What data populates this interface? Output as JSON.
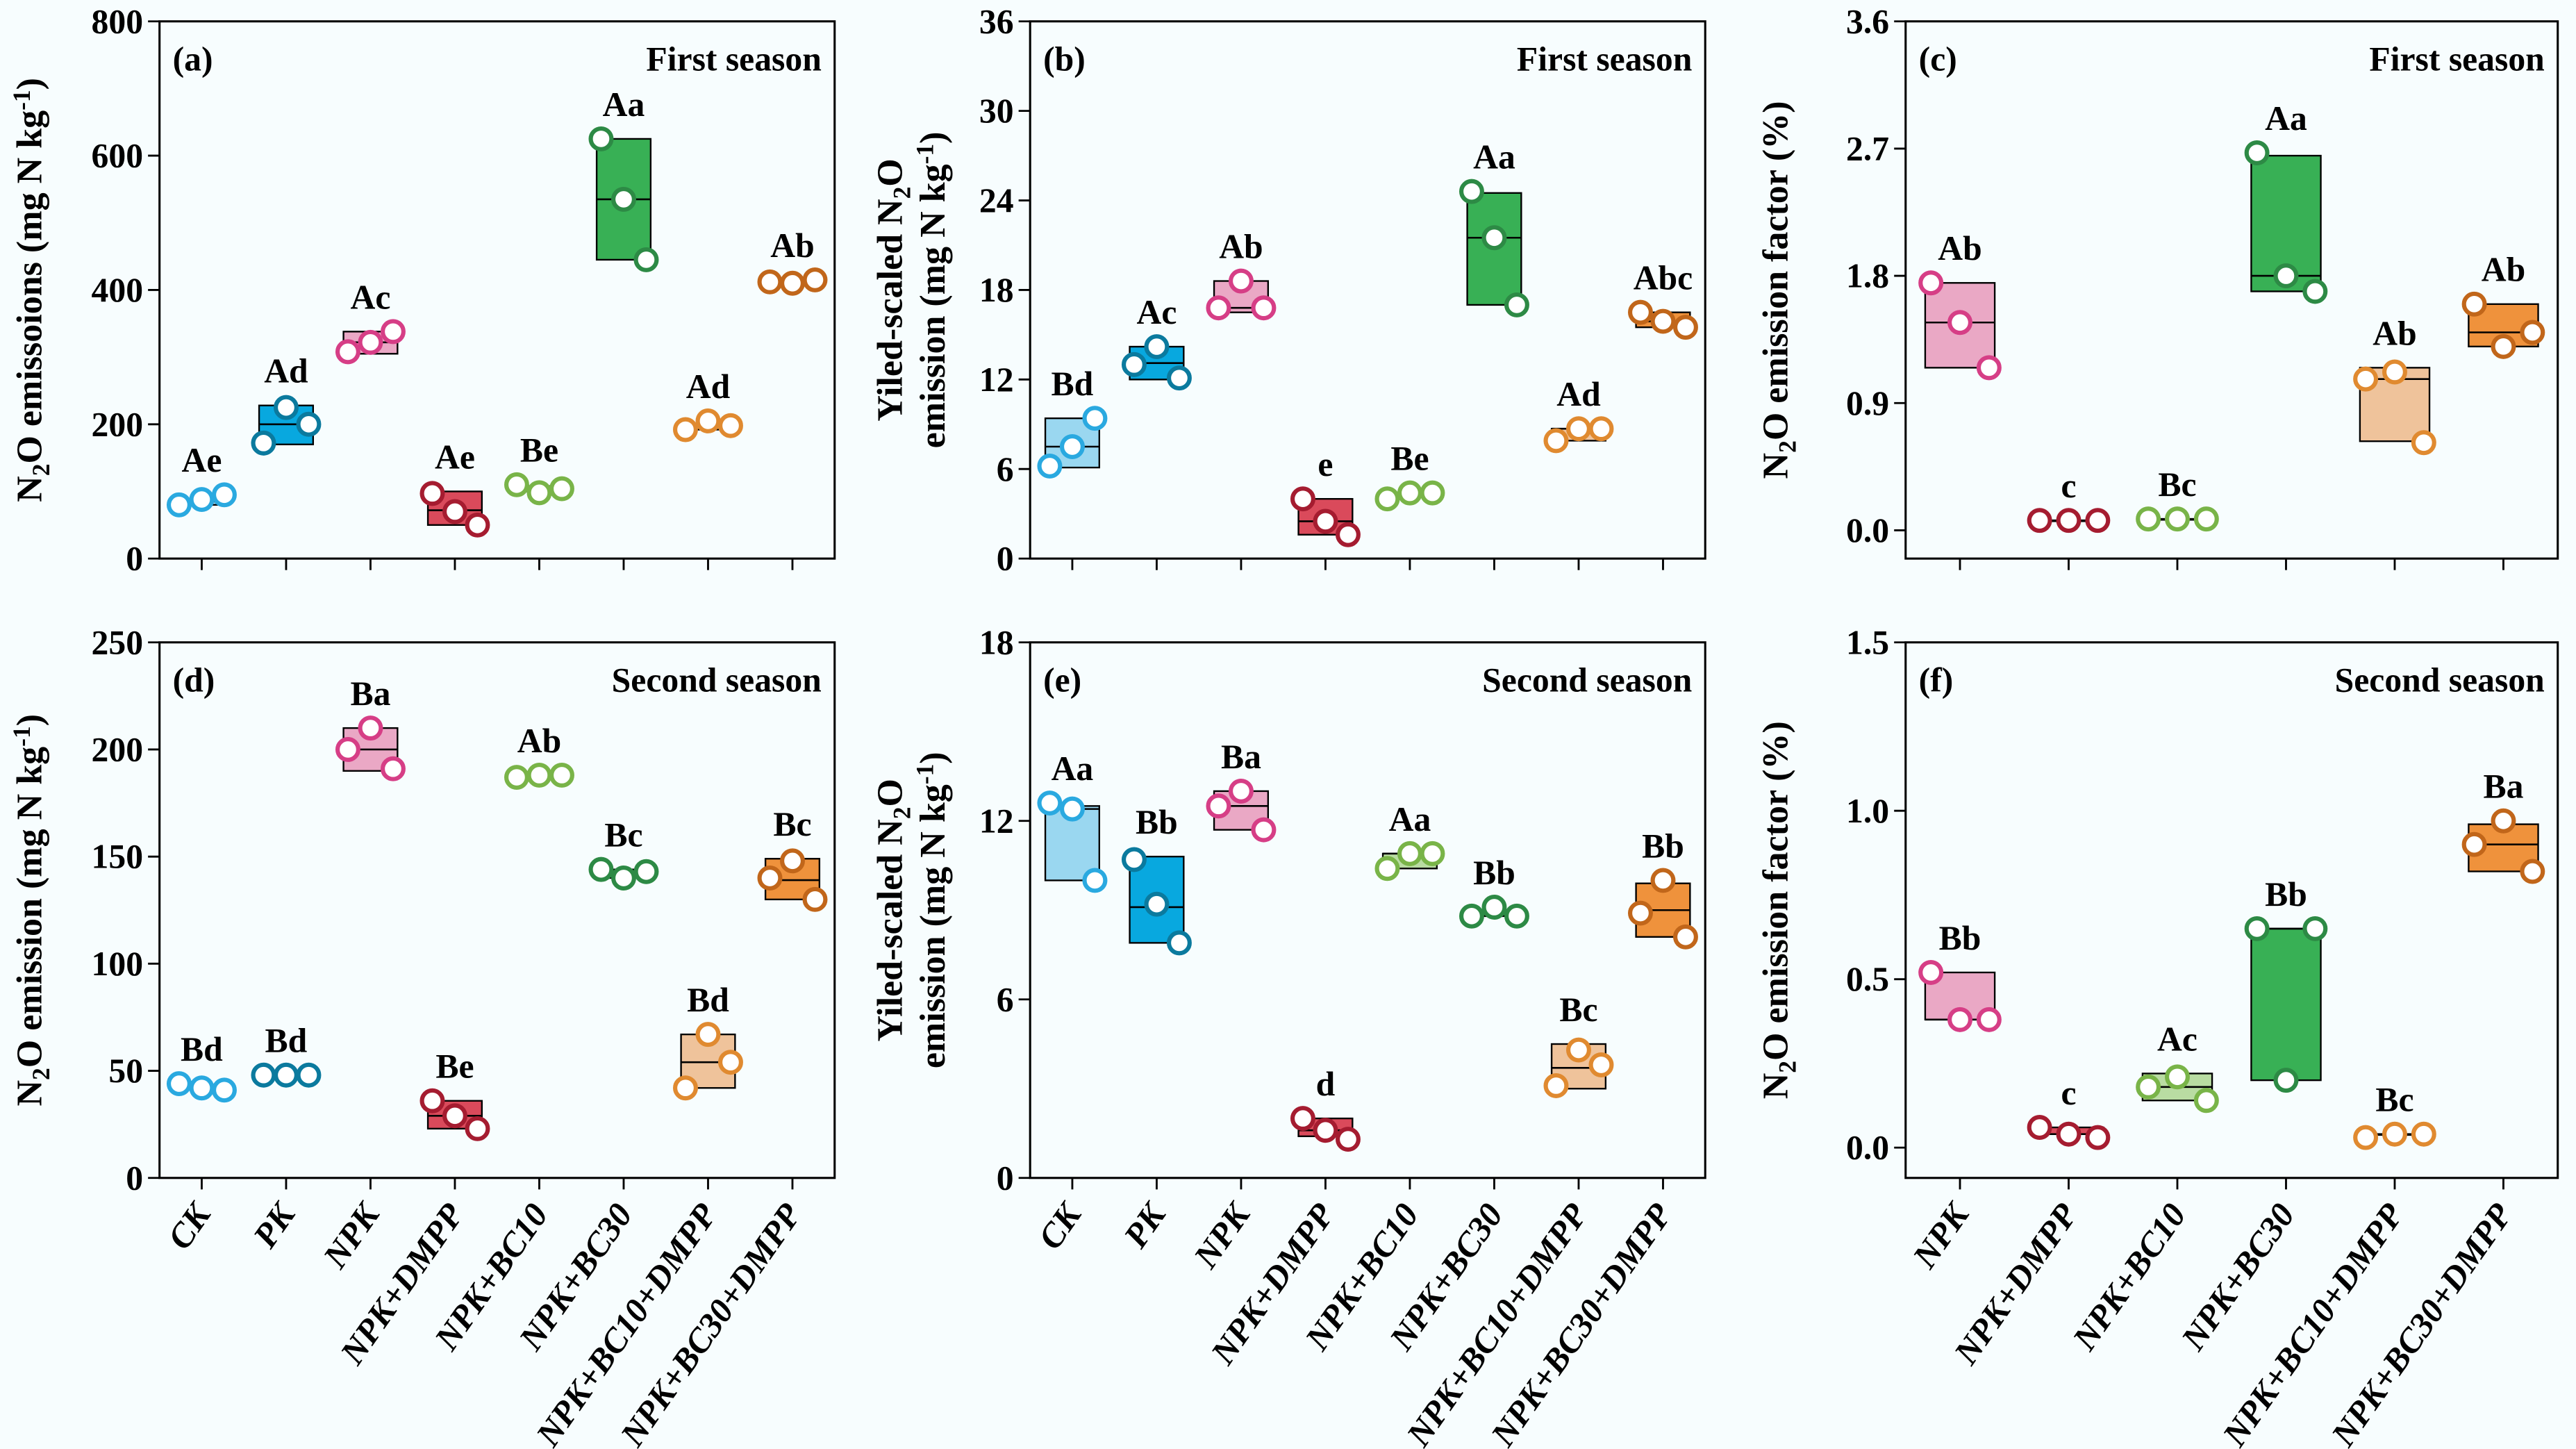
{
  "treatments": {
    "CK": {
      "point": "#2aa9e0",
      "box": "#9ad7f0"
    },
    "PK": {
      "point": "#0b7a9e",
      "box": "#08a8df"
    },
    "NPK": {
      "point": "#d63e86",
      "box": "#eaa8c5"
    },
    "NPK+DMPP": {
      "point": "#a51c30",
      "box": "#da4a5b"
    },
    "NPK+BC10": {
      "point": "#79b448",
      "box": "#b9dca2"
    },
    "NPK+BC30": {
      "point": "#2d8a45",
      "box": "#38b055"
    },
    "NPK+BC10+DMPP": {
      "point": "#e08a30",
      "box": "#efc39b"
    },
    "NPK+BC30+DMPP": {
      "point": "#c1661a",
      "box": "#ef923c"
    }
  },
  "chart_data": [
    {
      "id": "a",
      "type": "box-scatter",
      "panel_label": "(a)",
      "season": "First season",
      "ylabel": "N2O emissoions (mg N kg-1)",
      "ylabel_parts": [
        "N",
        "2",
        "O emissoions (mg N kg",
        "-1",
        ")"
      ],
      "ylim": [
        0,
        800
      ],
      "yticks": [
        0,
        200,
        400,
        600,
        800
      ],
      "ytick_labels": [
        "0",
        "200",
        "400",
        "600",
        "800"
      ],
      "categories": [
        "CK",
        "PK",
        "NPK",
        "NPK+DMPP",
        "NPK+BC10",
        "NPK+BC30",
        "NPK+BC10+DMPP",
        "NPK+BC30+DMPP"
      ],
      "show_category_labels": false,
      "groups": [
        {
          "points": [
            80,
            88,
            95
          ],
          "low": 80,
          "high": 88,
          "median": 85,
          "letter": "Ae"
        },
        {
          "points": [
            172,
            225,
            200
          ],
          "low": 170,
          "high": 228,
          "median": 200,
          "letter": "Ad"
        },
        {
          "points": [
            308,
            322,
            338
          ],
          "low": 305,
          "high": 338,
          "median": 322,
          "letter": "Ac"
        },
        {
          "points": [
            97,
            70,
            50
          ],
          "low": 50,
          "high": 100,
          "median": 72,
          "letter": "Ae"
        },
        {
          "points": [
            110,
            98,
            104
          ],
          "low": 100,
          "high": 108,
          "median": 104,
          "letter": "Be"
        },
        {
          "points": [
            625,
            535,
            445
          ],
          "low": 445,
          "high": 625,
          "median": 535,
          "letter": "Aa"
        },
        {
          "points": [
            192,
            205,
            198
          ],
          "low": 192,
          "high": 200,
          "median": 197,
          "letter": "Ad"
        },
        {
          "points": [
            412,
            410,
            415
          ],
          "low": 410,
          "high": 414,
          "median": 412,
          "letter": "Ab"
        }
      ]
    },
    {
      "id": "b",
      "type": "box-scatter",
      "panel_label": "(b)",
      "season": "First season",
      "ylabel": "Yiled-scaled N2O emission (mg N kg-1)",
      "ylabel_line1_parts": [
        "Yiled-scaled N",
        "2",
        "O"
      ],
      "ylabel_line2_parts": [
        "emission (mg N kg",
        "-1",
        ")"
      ],
      "ylim": [
        0,
        36
      ],
      "yticks": [
        0,
        6,
        12,
        18,
        24,
        30,
        36
      ],
      "ytick_labels": [
        "0",
        "6",
        "12",
        "18",
        "24",
        "30",
        "36"
      ],
      "categories": [
        "CK",
        "PK",
        "NPK",
        "NPK+DMPP",
        "NPK+BC10",
        "NPK+BC30",
        "NPK+BC10+DMPP",
        "NPK+BC30+DMPP"
      ],
      "show_category_labels": false,
      "groups": [
        {
          "points": [
            6.2,
            7.5,
            9.4
          ],
          "low": 6.1,
          "high": 9.4,
          "median": 7.5,
          "letter": "Bd"
        },
        {
          "points": [
            13.0,
            14.2,
            12.1
          ],
          "low": 12.0,
          "high": 14.2,
          "median": 13.1,
          "letter": "Ac"
        },
        {
          "points": [
            16.8,
            18.6,
            16.8
          ],
          "low": 16.5,
          "high": 18.6,
          "median": 16.8,
          "letter": "Ab"
        },
        {
          "points": [
            4.0,
            2.5,
            1.6
          ],
          "low": 1.6,
          "high": 4.0,
          "median": 2.5,
          "letter": "e"
        },
        {
          "points": [
            4.0,
            4.4,
            4.4
          ],
          "low": 4.3,
          "high": 4.3,
          "median": 4.3,
          "letter": "Be"
        },
        {
          "points": [
            24.6,
            21.5,
            17.0
          ],
          "low": 17.0,
          "high": 24.5,
          "median": 21.5,
          "letter": "Aa"
        },
        {
          "points": [
            7.9,
            8.7,
            8.7
          ],
          "low": 7.9,
          "high": 8.7,
          "median": 8.7,
          "letter": "Ad"
        },
        {
          "points": [
            16.5,
            15.9,
            15.5
          ],
          "low": 15.5,
          "high": 16.5,
          "median": 15.9,
          "letter": "Abc"
        }
      ]
    },
    {
      "id": "c",
      "type": "box-scatter",
      "panel_label": "(c)",
      "season": "First season",
      "ylabel": "N2O emission factor (%)",
      "ylabel_parts": [
        "N",
        "2",
        "O emission factor (%)"
      ],
      "ylim": [
        -0.2,
        3.6
      ],
      "yticks": [
        0,
        0.9,
        1.8,
        2.7,
        3.6
      ],
      "ytick_labels": [
        "0.0",
        "0.9",
        "1.8",
        "2.7",
        "3.6"
      ],
      "categories": [
        "NPK",
        "NPK+DMPP",
        "NPK+BC10",
        "NPK+BC30",
        "NPK+BC10+DMPP",
        "NPK+BC30+DMPP"
      ],
      "show_category_labels": false,
      "groups": [
        {
          "points": [
            1.75,
            1.47,
            1.15
          ],
          "low": 1.15,
          "high": 1.75,
          "median": 1.47,
          "letter": "Ab"
        },
        {
          "points": [
            0.07,
            0.07,
            0.07
          ],
          "low": 0.07,
          "high": 0.07,
          "median": 0.07,
          "letter": "c"
        },
        {
          "points": [
            0.08,
            0.08,
            0.08
          ],
          "low": 0.08,
          "high": 0.08,
          "median": 0.08,
          "letter": "Bc"
        },
        {
          "points": [
            2.67,
            1.8,
            1.69
          ],
          "low": 1.69,
          "high": 2.65,
          "median": 1.8,
          "letter": "Aa"
        },
        {
          "points": [
            1.07,
            1.12,
            0.62
          ],
          "low": 0.63,
          "high": 1.15,
          "median": 1.07,
          "letter": "Ab"
        },
        {
          "points": [
            1.6,
            1.3,
            1.4
          ],
          "low": 1.3,
          "high": 1.6,
          "median": 1.4,
          "letter": "Ab"
        }
      ]
    },
    {
      "id": "d",
      "type": "box-scatter",
      "panel_label": "(d)",
      "season": "Second season",
      "ylabel": "N2O emission (mg N kg-1)",
      "ylabel_parts": [
        "N",
        "2",
        "O emission (mg N kg",
        "-1",
        ")"
      ],
      "ylim": [
        0,
        250
      ],
      "yticks": [
        0,
        50,
        100,
        150,
        200,
        250
      ],
      "ytick_labels": [
        "0",
        "50",
        "100",
        "150",
        "200",
        "250"
      ],
      "categories": [
        "CK",
        "PK",
        "NPK",
        "NPK+DMPP",
        "NPK+BC10",
        "NPK+BC30",
        "NPK+BC10+DMPP",
        "NPK+BC30+DMPP"
      ],
      "show_category_labels": true,
      "groups": [
        {
          "points": [
            44,
            42,
            41
          ],
          "low": 42,
          "high": 43,
          "median": 43,
          "letter": "Bd"
        },
        {
          "points": [
            48,
            48,
            48
          ],
          "low": 48,
          "high": 48,
          "median": 48,
          "letter": "Bd"
        },
        {
          "points": [
            200,
            210,
            191
          ],
          "low": 190,
          "high": 210,
          "median": 200,
          "letter": "Ba"
        },
        {
          "points": [
            36,
            29,
            23
          ],
          "low": 23,
          "high": 36,
          "median": 29,
          "letter": "Be"
        },
        {
          "points": [
            187,
            188,
            188
          ],
          "low": 187,
          "high": 188,
          "median": 187.5,
          "letter": "Ab"
        },
        {
          "points": [
            144,
            140,
            143
          ],
          "low": 140,
          "high": 144,
          "median": 143,
          "letter": "Bc"
        },
        {
          "points": [
            42,
            67,
            54
          ],
          "low": 42,
          "high": 67,
          "median": 54,
          "letter": "Bd"
        },
        {
          "points": [
            140,
            148,
            130
          ],
          "low": 130,
          "high": 149,
          "median": 139,
          "letter": "Bc"
        }
      ]
    },
    {
      "id": "e",
      "type": "box-scatter",
      "panel_label": "(e)",
      "season": "Second season",
      "ylabel": "Yiled-scaled N2O emission (mg N kg-1)",
      "ylabel_line1_parts": [
        "Yiled-scaled N",
        "2",
        "O"
      ],
      "ylabel_line2_parts": [
        "emission  (mg N kg",
        "-1",
        ")"
      ],
      "ylim": [
        0,
        18
      ],
      "yticks": [
        0,
        6,
        12,
        18
      ],
      "ytick_labels": [
        "0",
        "6",
        "12",
        "18"
      ],
      "categories": [
        "CK",
        "PK",
        "NPK",
        "NPK+DMPP",
        "NPK+BC10",
        "NPK+BC30",
        "NPK+BC10+DMPP",
        "NPK+BC30+DMPP"
      ],
      "show_category_labels": true,
      "groups": [
        {
          "points": [
            12.6,
            12.4,
            10.0
          ],
          "low": 10.0,
          "high": 12.5,
          "median": 12.4,
          "letter": "Aa"
        },
        {
          "points": [
            10.7,
            9.2,
            7.9
          ],
          "low": 7.9,
          "high": 10.8,
          "median": 9.1,
          "letter": "Bb"
        },
        {
          "points": [
            12.5,
            13.0,
            11.7
          ],
          "low": 11.7,
          "high": 13.0,
          "median": 12.5,
          "letter": "Ba"
        },
        {
          "points": [
            2.0,
            1.6,
            1.3
          ],
          "low": 1.4,
          "high": 2.0,
          "median": 1.6,
          "letter": "d"
        },
        {
          "points": [
            10.4,
            10.9,
            10.9
          ],
          "low": 10.4,
          "high": 10.9,
          "median": 10.9,
          "letter": "Aa"
        },
        {
          "points": [
            8.8,
            9.1,
            8.8
          ],
          "low": 8.8,
          "high": 8.9,
          "median": 8.8,
          "letter": "Bb"
        },
        {
          "points": [
            3.1,
            4.3,
            3.8
          ],
          "low": 3.0,
          "high": 4.5,
          "median": 3.7,
          "letter": "Bc"
        },
        {
          "points": [
            8.9,
            10.0,
            8.1
          ],
          "low": 8.1,
          "high": 9.9,
          "median": 9.0,
          "letter": "Bb"
        }
      ]
    },
    {
      "id": "f",
      "type": "box-scatter",
      "panel_label": "(f)",
      "season": "Second season",
      "ylabel": "N2O emission factor (%)",
      "ylabel_parts": [
        "N",
        "2",
        "O emission factor (%)"
      ],
      "ylim": [
        -0.09,
        1.5
      ],
      "yticks": [
        0,
        0.5,
        1.0,
        1.5
      ],
      "ytick_labels": [
        "0.0",
        "0.5",
        "1.0",
        "1.5"
      ],
      "categories": [
        "NPK",
        "NPK+DMPP",
        "NPK+BC10",
        "NPK+BC30",
        "NPK+BC10+DMPP",
        "NPK+BC30+DMPP"
      ],
      "show_category_labels": true,
      "groups": [
        {
          "points": [
            0.52,
            0.38,
            0.38
          ],
          "low": 0.38,
          "high": 0.52,
          "median": 0.38,
          "letter": "Bb"
        },
        {
          "points": [
            0.06,
            0.04,
            0.03
          ],
          "low": 0.04,
          "high": 0.06,
          "median": 0.04,
          "letter": "c"
        },
        {
          "points": [
            0.18,
            0.21,
            0.14
          ],
          "low": 0.14,
          "high": 0.22,
          "median": 0.18,
          "letter": "Ac"
        },
        {
          "points": [
            0.65,
            0.2,
            0.65
          ],
          "low": 0.2,
          "high": 0.65,
          "median": 0.65,
          "letter": "Bb"
        },
        {
          "points": [
            0.03,
            0.04,
            0.04
          ],
          "low": 0.04,
          "high": 0.04,
          "median": 0.04,
          "letter": "Bc"
        },
        {
          "points": [
            0.9,
            0.97,
            0.82
          ],
          "low": 0.82,
          "high": 0.96,
          "median": 0.9,
          "letter": "Ba"
        }
      ]
    }
  ]
}
